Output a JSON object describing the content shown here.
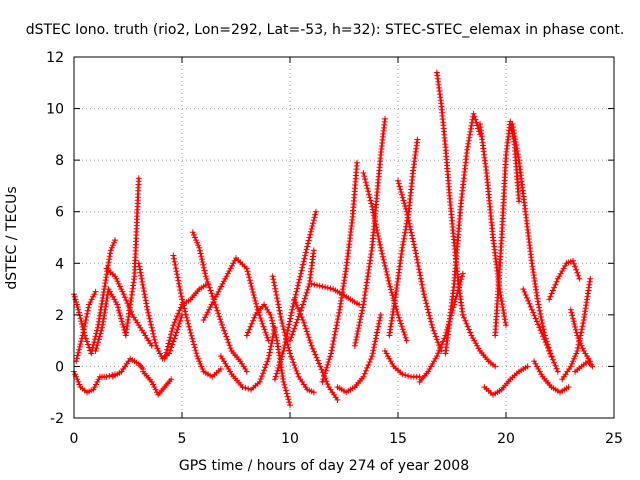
{
  "chart_data": {
    "type": "scatter",
    "title": "dSTEC Iono. truth (rio2, Lon=292, Lat=-53, h=32): STEC-STEC_elemax in phase cont.",
    "xlabel": "GPS time / hours of day 274 of year 2008",
    "ylabel": "dSTEC  / TECUs",
    "xlim": [
      0,
      25
    ],
    "ylim": [
      -2,
      12
    ],
    "xticks": [
      0,
      5,
      10,
      15,
      20,
      25
    ],
    "yticks": [
      -2,
      0,
      2,
      4,
      6,
      8,
      10,
      12
    ],
    "grid": true,
    "marker": "+",
    "color": "#ff0000",
    "series": [
      {
        "x": [
          0.0,
          0.2,
          0.5,
          0.8,
          1.1,
          1.4,
          1.7,
          1.9
        ],
        "y": [
          2.8,
          2.2,
          1.2,
          0.5,
          1.5,
          3.0,
          4.5,
          4.9
        ]
      },
      {
        "x": [
          0.0,
          0.3,
          0.6,
          0.9,
          1.2,
          1.5,
          1.9
        ],
        "y": [
          -0.2,
          -0.8,
          -1.0,
          -0.9,
          -0.4,
          -0.4,
          -0.3
        ]
      },
      {
        "x": [
          0.1,
          0.4,
          0.7,
          1.0
        ],
        "y": [
          0.2,
          1.2,
          2.4,
          2.9
        ]
      },
      {
        "x": [
          1.0,
          1.3,
          1.6,
          2.0,
          2.4,
          2.8,
          3.0
        ],
        "y": [
          0.6,
          1.5,
          3.0,
          2.4,
          1.2,
          3.5,
          7.3
        ]
      },
      {
        "x": [
          1.8,
          2.2,
          2.6,
          3.0,
          3.2
        ],
        "y": [
          -0.4,
          -0.2,
          0.3,
          0.1,
          -0.1
        ]
      },
      {
        "x": [
          1.5,
          1.9,
          2.3,
          2.7,
          3.0,
          3.3,
          3.6
        ],
        "y": [
          3.8,
          3.5,
          2.8,
          2.0,
          1.6,
          1.2,
          0.8
        ]
      },
      {
        "x": [
          3.0,
          3.4,
          3.8,
          4.1,
          4.4,
          4.7,
          5.0
        ],
        "y": [
          4.0,
          2.2,
          0.8,
          0.3,
          0.5,
          1.2,
          2.0
        ]
      },
      {
        "x": [
          3.2,
          3.6,
          3.9,
          4.2,
          4.5
        ],
        "y": [
          -0.2,
          -0.6,
          -1.1,
          -0.8,
          -0.5
        ]
      },
      {
        "x": [
          4.6,
          5.0,
          5.4,
          5.7,
          6.0,
          6.4,
          6.8
        ],
        "y": [
          4.3,
          2.6,
          1.3,
          0.4,
          -0.2,
          -0.4,
          -0.1
        ]
      },
      {
        "x": [
          4.2,
          4.6,
          5.0,
          5.4,
          5.8,
          6.2
        ],
        "y": [
          0.3,
          1.6,
          2.4,
          2.6,
          3.0,
          3.2
        ]
      },
      {
        "x": [
          5.5,
          5.8,
          6.1,
          6.5,
          6.9,
          7.3,
          7.7,
          8.0
        ],
        "y": [
          5.2,
          4.6,
          3.5,
          2.5,
          1.5,
          0.6,
          0.2,
          -0.2
        ]
      },
      {
        "x": [
          6.0,
          6.5,
          7.0,
          7.5,
          8.0,
          8.5,
          9.0
        ],
        "y": [
          1.8,
          2.6,
          3.4,
          4.2,
          3.8,
          2.2,
          1.0
        ]
      },
      {
        "x": [
          6.8,
          7.3,
          7.8,
          8.2,
          8.6,
          9.0,
          9.3
        ],
        "y": [
          0.4,
          -0.3,
          -0.8,
          -0.9,
          -0.6,
          0.3,
          1.5
        ]
      },
      {
        "x": [
          8.0,
          8.4,
          8.8,
          9.1,
          9.4,
          9.7,
          10.0
        ],
        "y": [
          1.2,
          2.0,
          2.4,
          2.0,
          1.0,
          -0.6,
          -1.5
        ]
      },
      {
        "x": [
          9.2,
          9.6,
          10.0,
          10.4,
          10.8,
          11.1
        ],
        "y": [
          3.5,
          1.8,
          0.5,
          -0.4,
          -0.9,
          -1.0
        ]
      },
      {
        "x": [
          9.3,
          9.7,
          10.1,
          10.5,
          10.9,
          11.2
        ],
        "y": [
          -0.5,
          0.6,
          2.2,
          3.6,
          5.0,
          6.0
        ]
      },
      {
        "x": [
          10.0,
          10.3,
          10.6,
          10.9,
          11.1
        ],
        "y": [
          1.0,
          1.7,
          2.4,
          3.2,
          4.5
        ]
      },
      {
        "x": [
          10.2,
          10.6,
          11.0,
          11.4,
          11.8,
          12.2
        ],
        "y": [
          2.6,
          1.8,
          0.8,
          0.0,
          -0.8,
          -1.3
        ]
      },
      {
        "x": [
          11.0,
          11.5,
          12.0,
          12.4,
          12.8,
          13.2
        ],
        "y": [
          3.2,
          3.1,
          3.0,
          2.8,
          2.6,
          2.4
        ]
      },
      {
        "x": [
          11.5,
          11.9,
          12.3,
          12.6,
          12.9,
          13.1
        ],
        "y": [
          -0.6,
          0.5,
          2.2,
          3.8,
          5.8,
          7.9
        ]
      },
      {
        "x": [
          12.2,
          12.6,
          13.0,
          13.4,
          13.8,
          14.2
        ],
        "y": [
          -0.8,
          -1.0,
          -0.8,
          -0.4,
          0.4,
          2.0
        ]
      },
      {
        "x": [
          13.0,
          13.4,
          13.8,
          14.0,
          14.2,
          14.4
        ],
        "y": [
          0.8,
          2.4,
          4.6,
          6.4,
          8.2,
          9.6
        ]
      },
      {
        "x": [
          13.4,
          13.8,
          14.2,
          14.6,
          15.0,
          15.4
        ],
        "y": [
          7.5,
          6.2,
          4.6,
          3.2,
          2.0,
          1.0
        ]
      },
      {
        "x": [
          14.6,
          14.9,
          15.2,
          15.5,
          15.7,
          15.9
        ],
        "y": [
          1.2,
          2.8,
          4.6,
          6.0,
          7.6,
          8.8
        ]
      },
      {
        "x": [
          14.4,
          14.8,
          15.2,
          15.6,
          16.0
        ],
        "y": [
          0.6,
          0.0,
          -0.3,
          -0.4,
          -0.4
        ]
      },
      {
        "x": [
          15.0,
          15.4,
          15.8,
          16.2,
          16.6,
          17.0
        ],
        "y": [
          7.2,
          6.0,
          4.5,
          2.8,
          1.5,
          0.6
        ]
      },
      {
        "x": [
          16.8,
          17.0,
          17.2,
          17.4,
          17.6,
          17.8,
          18.0
        ],
        "y": [
          11.4,
          10.2,
          8.5,
          6.5,
          4.8,
          3.2,
          2.0
        ]
      },
      {
        "x": [
          16.0,
          16.4,
          16.8,
          17.2,
          17.6,
          18.0
        ],
        "y": [
          -0.6,
          -0.2,
          0.4,
          1.2,
          2.4,
          3.6
        ]
      },
      {
        "x": [
          17.2,
          17.6,
          17.9,
          18.2,
          18.5,
          18.8
        ],
        "y": [
          0.5,
          3.2,
          6.2,
          8.4,
          9.8,
          9.0
        ]
      },
      {
        "x": [
          18.0,
          18.4,
          18.8,
          19.2,
          19.5
        ],
        "y": [
          2.0,
          1.2,
          0.6,
          0.2,
          0.0
        ]
      },
      {
        "x": [
          18.8,
          19.1,
          19.4,
          19.7,
          20.0
        ],
        "y": [
          9.4,
          7.5,
          5.0,
          3.0,
          1.6
        ]
      },
      {
        "x": [
          19.0,
          19.4,
          19.8,
          20.2,
          20.6,
          21.0
        ],
        "y": [
          -0.8,
          -1.1,
          -0.9,
          -0.5,
          -0.2,
          0.0
        ]
      },
      {
        "x": [
          19.5,
          19.8,
          20.0,
          20.2,
          20.4,
          20.6
        ],
        "y": [
          1.2,
          5.0,
          8.2,
          9.5,
          8.6,
          6.4
        ]
      },
      {
        "x": [
          20.3,
          20.6,
          20.9,
          21.2,
          21.5,
          21.8,
          22.1
        ],
        "y": [
          9.4,
          8.0,
          6.0,
          4.0,
          2.4,
          1.2,
          0.4
        ]
      },
      {
        "x": [
          20.8,
          21.2,
          21.6,
          22.0,
          22.4
        ],
        "y": [
          3.0,
          2.2,
          1.4,
          0.6,
          -0.2
        ]
      },
      {
        "x": [
          21.3,
          21.7,
          22.1,
          22.5,
          22.9
        ],
        "y": [
          0.2,
          -0.4,
          -0.8,
          -1.0,
          -0.8
        ]
      },
      {
        "x": [
          22.0,
          22.4,
          22.8,
          23.1,
          23.4
        ],
        "y": [
          2.6,
          3.4,
          4.0,
          4.1,
          3.4
        ]
      },
      {
        "x": [
          22.6,
          23.0,
          23.3,
          23.6,
          23.9
        ],
        "y": [
          -0.5,
          0.0,
          0.6,
          1.8,
          3.4
        ]
      },
      {
        "x": [
          23.0,
          23.3,
          23.6,
          23.9
        ],
        "y": [
          2.2,
          1.2,
          0.6,
          0.2
        ]
      },
      {
        "x": [
          23.2,
          23.5,
          23.8,
          24.0
        ],
        "y": [
          -0.2,
          0.0,
          0.2,
          0.0
        ]
      }
    ]
  }
}
